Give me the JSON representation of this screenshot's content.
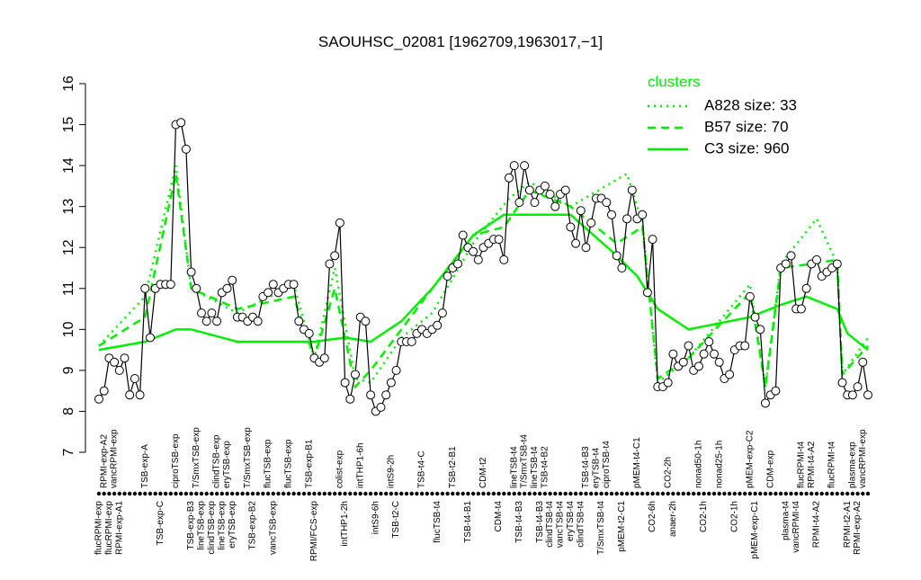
{
  "chart_data": {
    "type": "line",
    "title": "SAOUHSC_02081 [1962709,1963017,−1]",
    "color": "#000000",
    "ylim": [
      7,
      16
    ],
    "yticks": [
      7,
      8,
      9,
      10,
      11,
      12,
      13,
      14,
      15,
      16
    ],
    "legend_title": "clusters",
    "legend": "topright",
    "categories": [
      "flucRPMI-exp",
      "RPMI-exp-A2",
      "flucRPMI-exp",
      "vancRPMI-exp",
      "RPMI-exp-A1",
      null,
      null,
      null,
      null,
      "TSB-exp-A",
      null,
      null,
      "TSB-exp-C",
      null,
      null,
      "ciproTSB-exp",
      null,
      null,
      "TSB-exp-B3",
      "T/SmxTSB-exp",
      "lineTSB-exp",
      null,
      "clindTSB-exp",
      "clindTSB-exp",
      "lineTSB-exp",
      "eryTSB-exp",
      "eryTSB-exp",
      null,
      null,
      "T/SmxTSB-exp",
      "TSB-exp-B2",
      null,
      null,
      "flucTSB-exp",
      "vancTSB-exp",
      null,
      null,
      "flucTSB-exp",
      null,
      null,
      null,
      "TSB-exp-B1",
      "RPMI/FCS-exp",
      null,
      null,
      null,
      null,
      "colist-exp",
      "intTHP1-2h",
      null,
      null,
      "intTHP1-6h",
      null,
      null,
      "intS9-6h",
      null,
      null,
      "intS9-2h",
      "TSB-t2-C",
      null,
      null,
      null,
      null,
      "TSB-t4-C",
      null,
      null,
      "flucTSB-t4",
      null,
      null,
      "TSB-t2-B1",
      null,
      null,
      "TSB-t4-B1",
      null,
      null,
      "CDM-t2",
      null,
      null,
      "CDM-t4",
      null,
      null,
      "lineTSB-t4",
      "TSB-t4-B3",
      "T/SmxTSB-t4",
      null,
      "lineTSB-t4",
      "TSB-t4-B3",
      "TSB-t4-B2",
      "clindTSB-t4",
      null,
      "vancTSB-t4",
      null,
      "eryTSB-t4",
      null,
      "clindTSB-t4",
      "TSB-t4-B3",
      null,
      "eryTSB-t4",
      "T/SmxTSB-t4",
      "ciproTSB-t4",
      null,
      null,
      "pMEM-t2-C1",
      null,
      null,
      "pMEM-t4-C1",
      null,
      null,
      "CO2-6h",
      null,
      null,
      "CO2-2h",
      "anaer-2h",
      null,
      null,
      null,
      null,
      "nonad50-1h",
      "CO2-1h",
      null,
      null,
      "nonad25-1h",
      null,
      null,
      "CO2-1h",
      null,
      null,
      "pMEM-exp-C2",
      "pMEM-exp-C1",
      null,
      null,
      "CDM-exp",
      null,
      null,
      "plasma-t4",
      null,
      "vancRPMI-t4",
      "flucRPMI-t4",
      null,
      "RPMI-t4-A2",
      "RPMI-t4-A2",
      null,
      null,
      "flucRPMI-t4",
      null,
      null,
      "RPMI-t2-A1",
      "plasma-exp",
      "RPMI-exp-A2",
      "vancRPMI-exp",
      null
    ],
    "values": [
      8.3,
      8.5,
      9.3,
      9.2,
      9.0,
      9.3,
      8.4,
      8.8,
      8.4,
      11.0,
      9.8,
      11.0,
      11.1,
      11.1,
      11.1,
      15.0,
      15.05,
      14.4,
      11.4,
      11.0,
      10.4,
      10.2,
      10.4,
      10.2,
      10.9,
      11.0,
      11.2,
      10.3,
      10.3,
      10.2,
      10.3,
      10.2,
      10.8,
      10.9,
      11.1,
      10.9,
      11.0,
      11.1,
      11.1,
      10.2,
      10.0,
      9.9,
      9.3,
      9.2,
      9.3,
      11.6,
      11.8,
      12.6,
      8.7,
      8.3,
      8.9,
      10.3,
      10.2,
      8.4,
      8.0,
      8.1,
      8.4,
      8.7,
      9.0,
      9.7,
      9.7,
      9.7,
      9.9,
      10.0,
      9.9,
      10.0,
      10.1,
      10.4,
      11.3,
      11.5,
      11.6,
      12.3,
      12.0,
      11.9,
      11.7,
      12.0,
      12.1,
      12.2,
      12.2,
      11.7,
      13.7,
      14.0,
      13.1,
      14.0,
      13.4,
      13.1,
      13.4,
      13.5,
      13.3,
      13.0,
      13.3,
      13.4,
      12.5,
      12.1,
      12.9,
      12.0,
      12.6,
      13.2,
      13.2,
      13.1,
      12.8,
      11.8,
      11.5,
      12.7,
      13.4,
      12.7,
      12.8,
      10.9,
      12.2,
      8.6,
      8.6,
      8.7,
      9.4,
      9.1,
      9.2,
      9.6,
      9.0,
      9.1,
      9.4,
      9.7,
      9.4,
      9.2,
      8.8,
      8.9,
      9.5,
      9.6,
      9.6,
      10.8,
      10.3,
      10.0,
      8.2,
      8.4,
      8.5,
      11.5,
      11.6,
      11.8,
      10.5,
      10.5,
      11.0,
      11.6,
      11.7,
      11.3,
      11.4,
      11.5,
      11.6,
      8.7,
      8.4,
      8.4,
      8.6,
      9.2,
      8.4
    ],
    "series": [
      {
        "name": "A828 size: 33",
        "color": "#00ee00",
        "line_style": "dotted",
        "x": [
          0,
          9,
          15,
          18,
          27,
          38,
          42,
          46,
          50,
          53,
          59,
          65,
          73,
          80,
          84,
          92,
          103,
          106,
          109,
          115,
          127,
          130,
          133,
          140,
          144,
          145,
          150
        ],
        "values": [
          9.6,
          10.8,
          14.0,
          11.0,
          10.4,
          11.1,
          9.3,
          11.5,
          8.8,
          8.7,
          9.8,
          10.4,
          12.1,
          13.2,
          13.6,
          13.0,
          13.8,
          12.6,
          8.7,
          9.3,
          11.1,
          8.6,
          11.6,
          12.7,
          11.6,
          8.9,
          9.8
        ]
      },
      {
        "name": "B57 size: 70",
        "color": "#00ee00",
        "line_style": "dashed",
        "x": [
          0,
          9,
          15,
          18,
          27,
          38,
          42,
          46,
          50,
          53,
          59,
          65,
          73,
          79,
          84,
          92,
          101,
          106,
          109,
          115,
          127,
          130,
          133,
          139,
          144,
          145,
          150
        ],
        "values": [
          9.6,
          10.3,
          13.8,
          11.0,
          10.5,
          10.8,
          9.3,
          11.0,
          8.6,
          9.0,
          10.0,
          11.0,
          12.3,
          12.5,
          13.4,
          13.0,
          12.1,
          12.5,
          8.8,
          9.3,
          10.9,
          8.6,
          11.5,
          11.6,
          11.7,
          8.9,
          9.6
        ]
      },
      {
        "name": "C3 size: 960",
        "color": "#00ee00",
        "line_style": "solid",
        "x": [
          0,
          9,
          15,
          18,
          27,
          42,
          48,
          53,
          59,
          65,
          70,
          73,
          79,
          84,
          92,
          101,
          105,
          109,
          115,
          127,
          133,
          138,
          144,
          146,
          150
        ],
        "values": [
          9.5,
          9.7,
          10.0,
          10.0,
          9.7,
          9.7,
          9.8,
          9.7,
          10.2,
          11.0,
          11.8,
          12.3,
          12.8,
          12.8,
          12.8,
          11.8,
          11.3,
          10.5,
          10.0,
          10.3,
          10.6,
          10.8,
          10.5,
          9.9,
          9.5
        ]
      }
    ]
  }
}
